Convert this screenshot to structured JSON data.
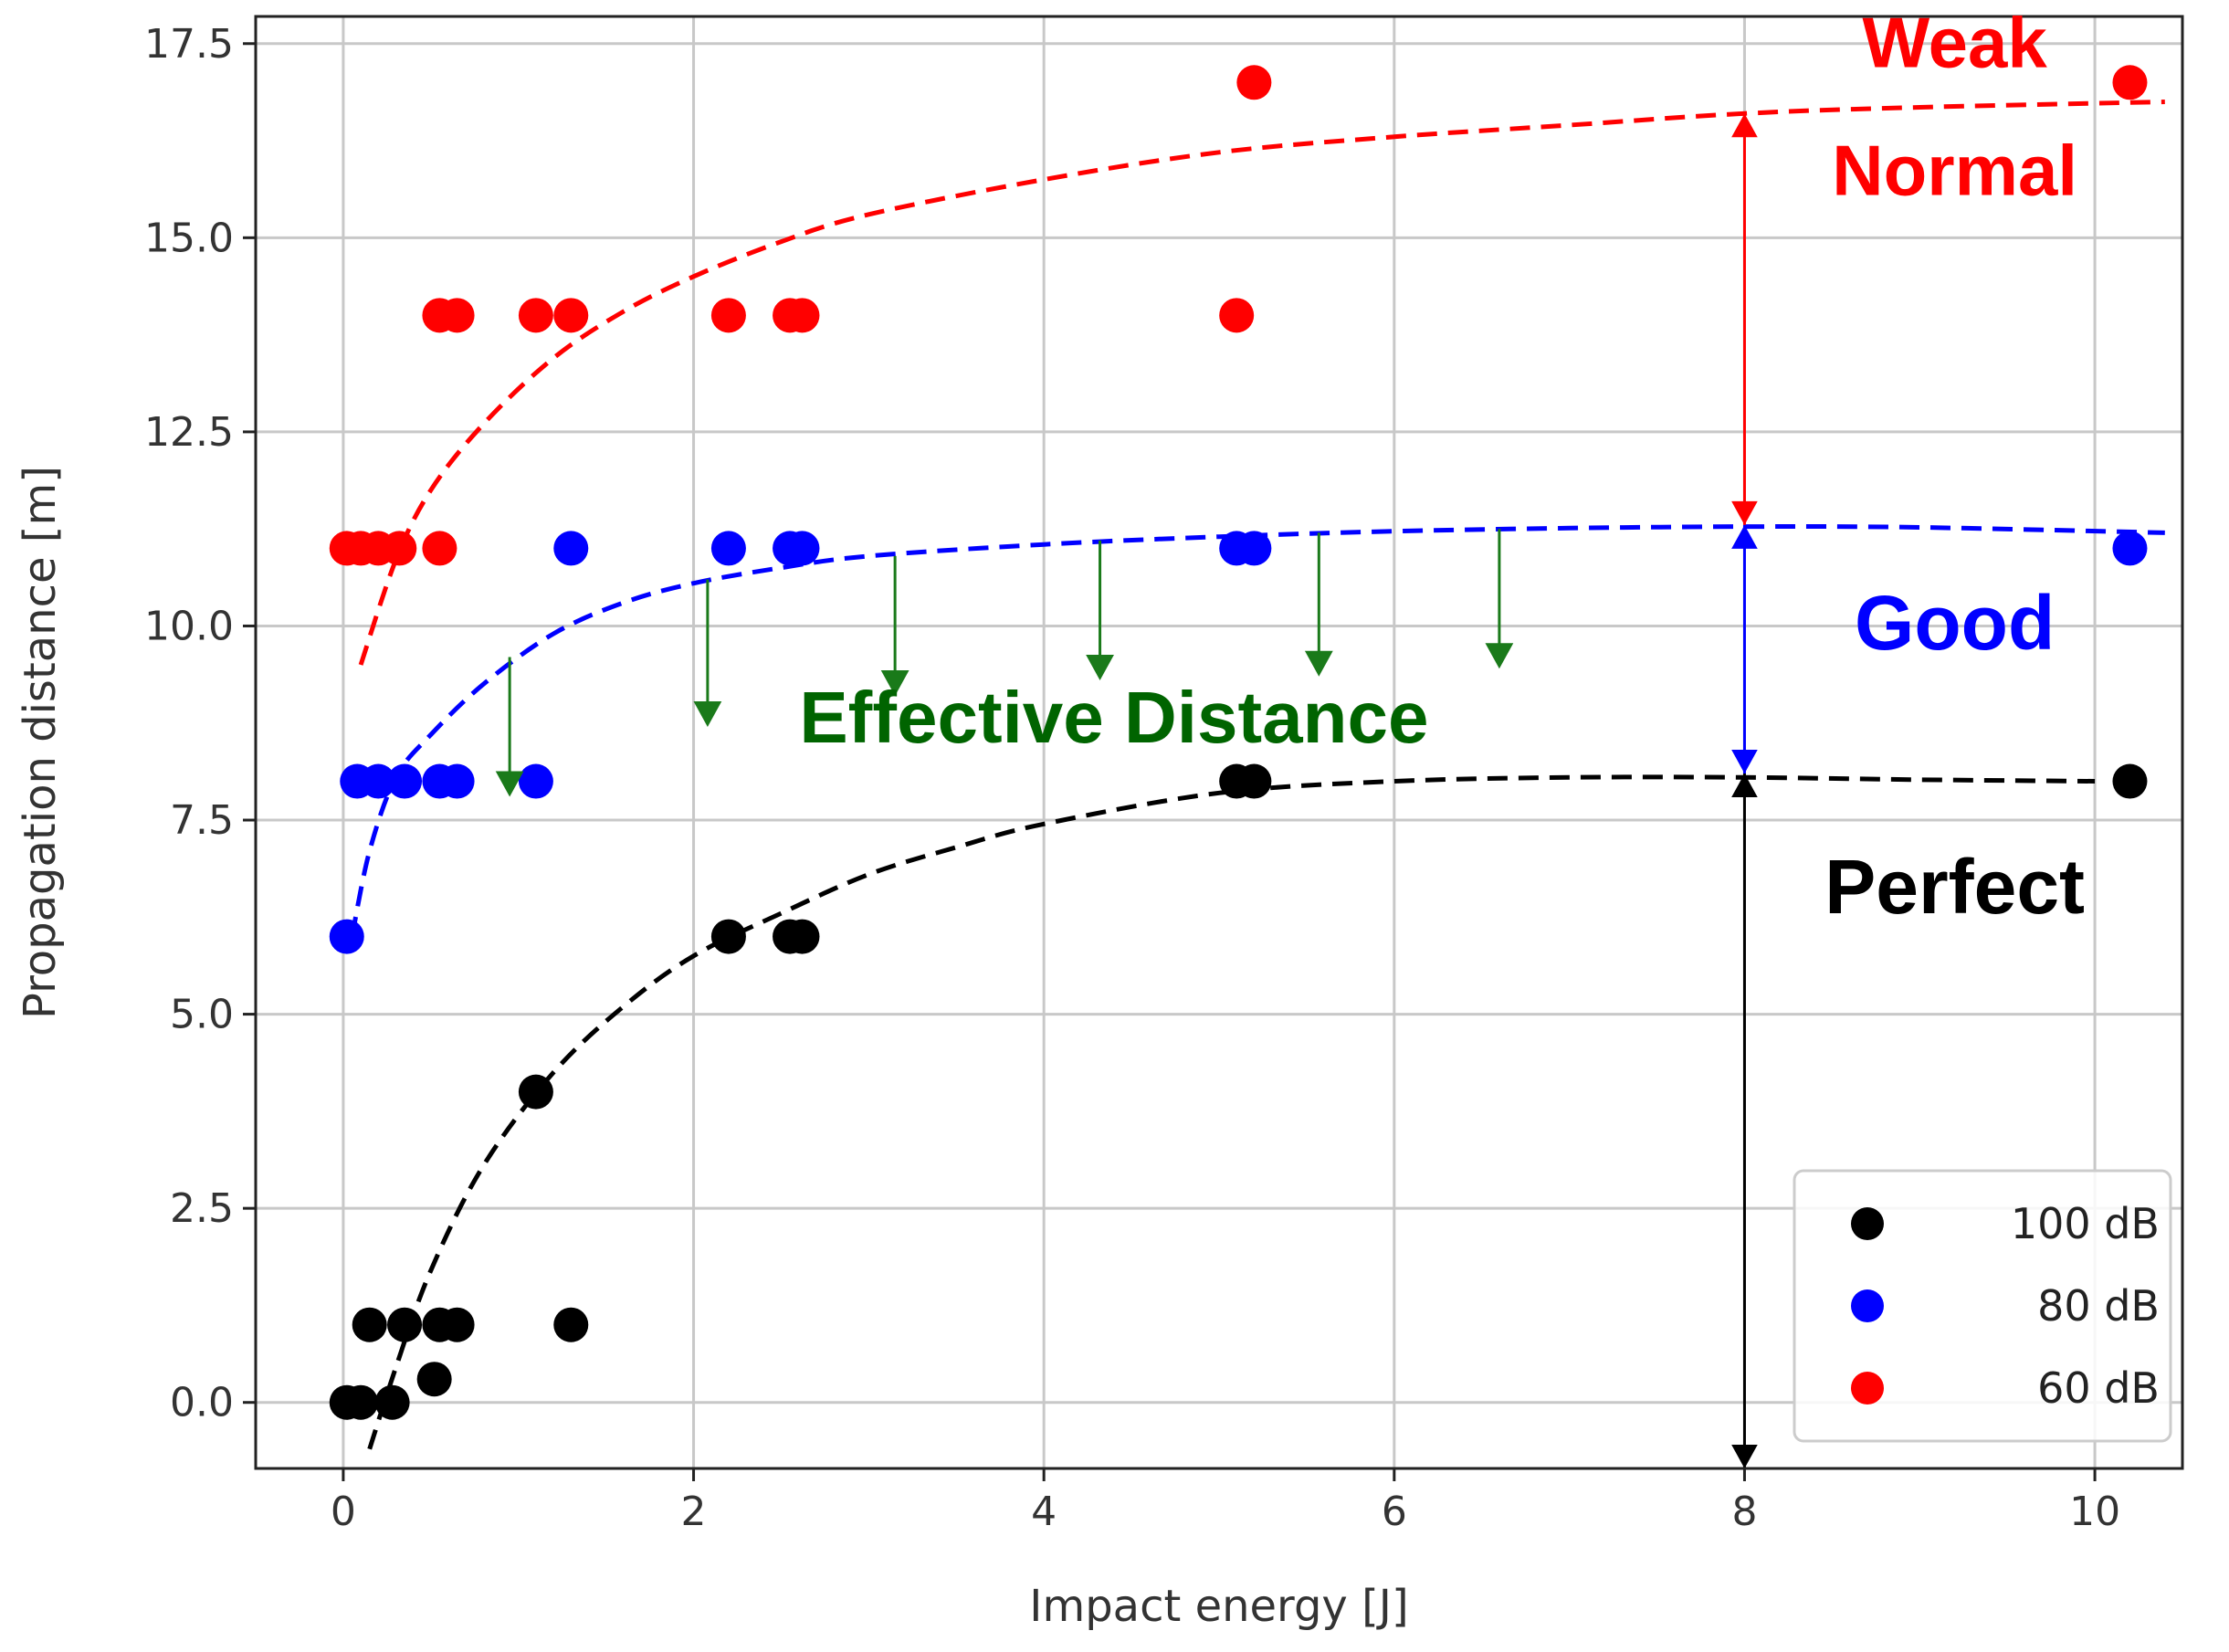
{
  "chart_data": {
    "type": "scatter",
    "xlabel": "Impact energy [J]",
    "ylabel": "Propagation distance [m]",
    "xlim": [
      -0.5,
      10.5
    ],
    "ylim": [
      -0.85,
      17.85
    ],
    "xticks": [
      "0",
      "2",
      "4",
      "6",
      "8",
      "10"
    ],
    "xtick_values": [
      0,
      2,
      4,
      6,
      8,
      10
    ],
    "yticks": [
      "0.0",
      "2.5",
      "5.0",
      "7.5",
      "10.0",
      "12.5",
      "15.0",
      "17.5"
    ],
    "ytick_values": [
      0,
      2.5,
      5,
      7.5,
      10,
      12.5,
      15,
      17.5
    ],
    "grid": true,
    "legend_position": "bottom-right",
    "series": [
      {
        "name": "100 dB",
        "color": "#000000",
        "points": [
          [
            0.02,
            0
          ],
          [
            0.1,
            0
          ],
          [
            0.28,
            0
          ],
          [
            0.15,
            1
          ],
          [
            0.35,
            1
          ],
          [
            0.55,
            1
          ],
          [
            0.65,
            1
          ],
          [
            1.3,
            1
          ],
          [
            0.52,
            0.3
          ],
          [
            1.1,
            4
          ],
          [
            2.2,
            6
          ],
          [
            2.55,
            6
          ],
          [
            2.62,
            6
          ],
          [
            5.1,
            8
          ],
          [
            5.2,
            8
          ],
          [
            10.2,
            8
          ]
        ],
        "fit": [
          [
            0.15,
            -0.6
          ],
          [
            0.3,
            0.45
          ],
          [
            0.5,
            1.7
          ],
          [
            0.8,
            3.05
          ],
          [
            1.2,
            4.25
          ],
          [
            1.6,
            5.1
          ],
          [
            2.0,
            5.75
          ],
          [
            2.5,
            6.3
          ],
          [
            3.0,
            6.8
          ],
          [
            3.5,
            7.15
          ],
          [
            4.0,
            7.45
          ],
          [
            5.0,
            7.85
          ],
          [
            6.0,
            8.0
          ],
          [
            7.0,
            8.05
          ],
          [
            8.0,
            8.05
          ],
          [
            9.0,
            8.02
          ],
          [
            10.0,
            8.0
          ]
        ]
      },
      {
        "name": "80 dB",
        "color": "#0000ff",
        "points": [
          [
            0.02,
            6
          ],
          [
            0.08,
            8
          ],
          [
            0.2,
            8
          ],
          [
            0.35,
            8
          ],
          [
            0.55,
            8
          ],
          [
            0.65,
            8
          ],
          [
            1.1,
            8
          ],
          [
            1.3,
            11
          ],
          [
            2.2,
            11
          ],
          [
            2.55,
            11
          ],
          [
            2.62,
            11
          ],
          [
            5.1,
            11
          ],
          [
            5.2,
            11
          ],
          [
            10.2,
            11
          ]
        ],
        "fit": [
          [
            0.05,
            6.0
          ],
          [
            0.15,
            7.1
          ],
          [
            0.3,
            8.05
          ],
          [
            0.5,
            8.6
          ],
          [
            0.8,
            9.25
          ],
          [
            1.2,
            9.9
          ],
          [
            1.6,
            10.3
          ],
          [
            2.0,
            10.55
          ],
          [
            2.5,
            10.75
          ],
          [
            3.0,
            10.9
          ],
          [
            4.0,
            11.05
          ],
          [
            5.0,
            11.15
          ],
          [
            6.0,
            11.22
          ],
          [
            7.0,
            11.26
          ],
          [
            8.0,
            11.28
          ],
          [
            9.0,
            11.27
          ],
          [
            10.4,
            11.2
          ]
        ]
      },
      {
        "name": "60 dB",
        "color": "#ff0000",
        "points": [
          [
            0.02,
            11
          ],
          [
            0.1,
            11
          ],
          [
            0.2,
            11
          ],
          [
            0.32,
            11
          ],
          [
            0.55,
            11
          ],
          [
            0.55,
            14
          ],
          [
            0.65,
            14
          ],
          [
            1.1,
            14
          ],
          [
            1.3,
            14
          ],
          [
            2.2,
            14
          ],
          [
            2.55,
            14
          ],
          [
            2.62,
            14
          ],
          [
            5.1,
            14
          ],
          [
            5.2,
            17
          ],
          [
            10.2,
            17
          ]
        ],
        "fit": [
          [
            0.1,
            9.5
          ],
          [
            0.3,
            10.85
          ],
          [
            0.5,
            11.75
          ],
          [
            0.8,
            12.6
          ],
          [
            1.2,
            13.45
          ],
          [
            1.6,
            14.05
          ],
          [
            2.0,
            14.5
          ],
          [
            2.5,
            14.95
          ],
          [
            3.0,
            15.3
          ],
          [
            4.0,
            15.75
          ],
          [
            5.0,
            16.1
          ],
          [
            6.0,
            16.3
          ],
          [
            7.0,
            16.45
          ],
          [
            8.0,
            16.6
          ],
          [
            9.0,
            16.68
          ],
          [
            10.4,
            16.75
          ]
        ]
      }
    ],
    "annotations": [
      {
        "text": "Weak",
        "color": "#ff0000",
        "x": 9.2,
        "y": 17.2
      },
      {
        "text": "Normal",
        "color": "#ff0000",
        "x": 9.2,
        "y": 15.55
      },
      {
        "text": "Good",
        "color": "#0000ff",
        "x": 9.2,
        "y": 9.7
      },
      {
        "text": "Perfect",
        "color": "#000000",
        "x": 9.2,
        "y": 6.3
      },
      {
        "text": "Effective Distance",
        "color": "#006400",
        "x": 4.4,
        "y": 8.5
      }
    ],
    "range_arrows": [
      {
        "x": 8,
        "from": 16.6,
        "to": 11.3,
        "color": "#ff0000"
      },
      {
        "x": 8,
        "from": 11.3,
        "to": 8.1,
        "color": "#0000ff"
      },
      {
        "x": 8,
        "from": 8.1,
        "to": -0.85,
        "color": "#000000"
      }
    ],
    "effective_arrows": [
      {
        "x": 0.95,
        "from": 9.6,
        "to": 7.8
      },
      {
        "x": 2.08,
        "from": 10.6,
        "to": 8.7
      },
      {
        "x": 3.15,
        "from": 10.9,
        "to": 9.1
      },
      {
        "x": 4.32,
        "from": 11.1,
        "to": 9.3
      },
      {
        "x": 5.57,
        "from": 11.2,
        "to": 9.35
      },
      {
        "x": 6.6,
        "from": 11.25,
        "to": 9.45
      }
    ],
    "effective_color": "#1a7a1a"
  }
}
